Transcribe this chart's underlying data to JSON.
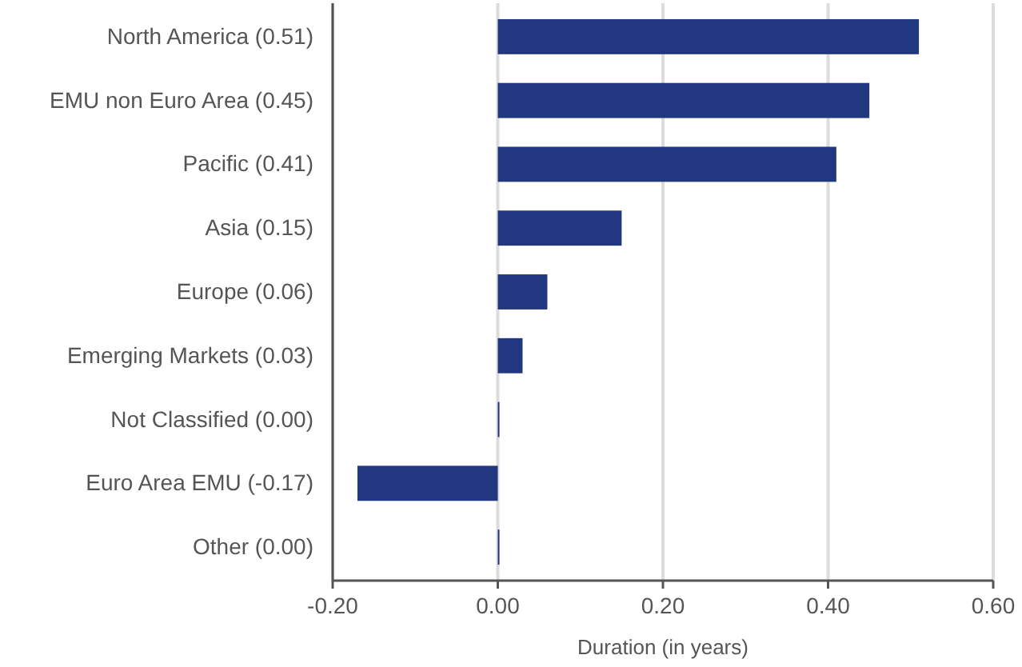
{
  "chart_data": {
    "type": "bar",
    "orientation": "horizontal",
    "xlabel": "Duration (in years)",
    "categories": [
      "North America (0.51)",
      "EMU non Euro Area (0.45)",
      "Pacific (0.41)",
      "Asia (0.15)",
      "Europe (0.06)",
      "Emerging Markets (0.03)",
      "Not Classified (0.00)",
      "Euro Area EMU (-0.17)",
      "Other (0.00)"
    ],
    "values": [
      0.51,
      0.45,
      0.41,
      0.15,
      0.06,
      0.03,
      0.0,
      -0.17,
      0.0
    ],
    "color": "#21377f",
    "xlim": [
      -0.2,
      0.6
    ],
    "xticks": [
      {
        "value": -0.2,
        "label": "-0.20"
      },
      {
        "value": 0,
        "label": "0.00"
      },
      {
        "value": 0.2,
        "label": "0.20"
      },
      {
        "value": 0.4,
        "label": "0.40"
      },
      {
        "value": 0.6,
        "label": "0.60"
      }
    ],
    "grid": "x"
  }
}
